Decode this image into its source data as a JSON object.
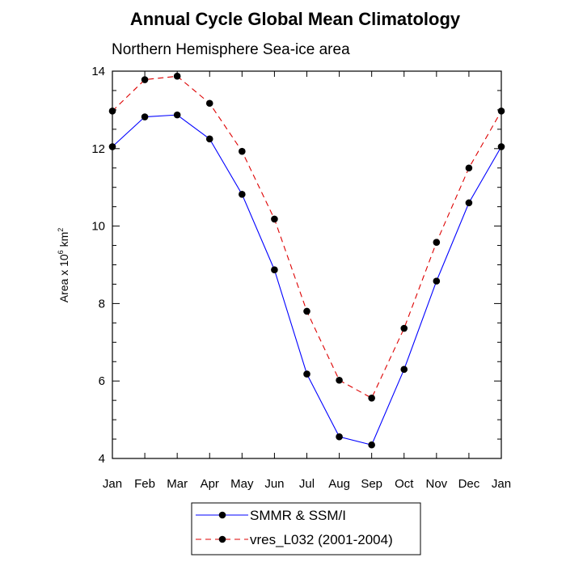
{
  "chart_data": {
    "type": "line",
    "title": "Annual Cycle Global Mean Climatology",
    "subtitle": "Northern Hemisphere Sea-ice area",
    "ylabel_main": "Area x 10",
    "ylabel_sup1": "6",
    "ylabel_mid": " km",
    "ylabel_sup2": "2",
    "xlabel": "",
    "categories": [
      "Jan",
      "Feb",
      "Mar",
      "Apr",
      "May",
      "Jun",
      "Jul",
      "Aug",
      "Sep",
      "Oct",
      "Nov",
      "Dec",
      "Jan"
    ],
    "ylim": [
      4,
      14
    ],
    "yticks": [
      "4",
      "6",
      "8",
      "10",
      "12",
      "14"
    ],
    "grid": false,
    "legend_position": "bottom-center",
    "series": [
      {
        "name": "SMMR & SSM/I",
        "color": "#0000ff",
        "line_style": "solid",
        "values": [
          12.05,
          12.82,
          12.87,
          12.25,
          10.82,
          8.87,
          6.18,
          4.56,
          4.35,
          6.3,
          8.58,
          10.6,
          12.05
        ]
      },
      {
        "name": "vres_L032 (2001-2004)",
        "color": "#dd0000",
        "line_style": "dashed",
        "values": [
          12.97,
          13.78,
          13.87,
          13.17,
          11.93,
          10.18,
          7.8,
          6.02,
          5.56,
          7.36,
          9.58,
          11.5,
          12.97
        ]
      }
    ]
  }
}
